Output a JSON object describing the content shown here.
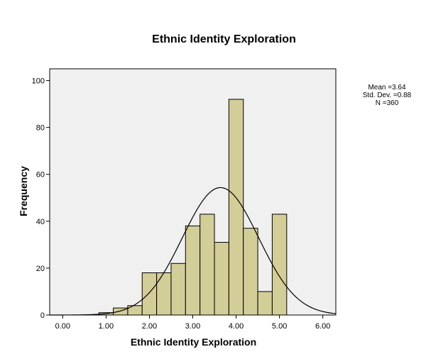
{
  "chart_data": {
    "type": "bar",
    "title": "Ethnic Identity Exploration",
    "xlabel": "Ethnic Identity Exploration",
    "ylabel": "Frequency",
    "xlim": [
      -0.3,
      6.3
    ],
    "ylim": [
      0,
      105
    ],
    "x_ticks": [
      "0.00",
      "1.00",
      "2.00",
      "3.00",
      "4.00",
      "5.00",
      "6.00"
    ],
    "y_ticks": [
      "0",
      "20",
      "40",
      "60",
      "80",
      "100"
    ],
    "bin_width": 0.333,
    "bins": [
      {
        "start": 0.833,
        "end": 1.167,
        "count": 1
      },
      {
        "start": 1.167,
        "end": 1.5,
        "count": 3
      },
      {
        "start": 1.5,
        "end": 1.833,
        "count": 4
      },
      {
        "start": 1.833,
        "end": 2.167,
        "count": 18
      },
      {
        "start": 2.167,
        "end": 2.5,
        "count": 18
      },
      {
        "start": 2.5,
        "end": 2.833,
        "count": 22
      },
      {
        "start": 2.833,
        "end": 3.167,
        "count": 38
      },
      {
        "start": 3.167,
        "end": 3.5,
        "count": 43
      },
      {
        "start": 3.5,
        "end": 3.833,
        "count": 31
      },
      {
        "start": 3.833,
        "end": 4.167,
        "count": 92
      },
      {
        "start": 4.167,
        "end": 4.5,
        "count": 37
      },
      {
        "start": 4.5,
        "end": 4.833,
        "count": 10
      },
      {
        "start": 4.833,
        "end": 5.167,
        "count": 43
      }
    ],
    "normal_curve": {
      "mean": 3.64,
      "std": 0.88,
      "n": 360
    },
    "grid": false,
    "plot_background": "#f0f0f0",
    "bar_color": "#d3ce97"
  },
  "stats": {
    "mean_text": "Mean =3.64",
    "std_text": "Std. Dev. =0.88",
    "n_text": "N =360"
  }
}
